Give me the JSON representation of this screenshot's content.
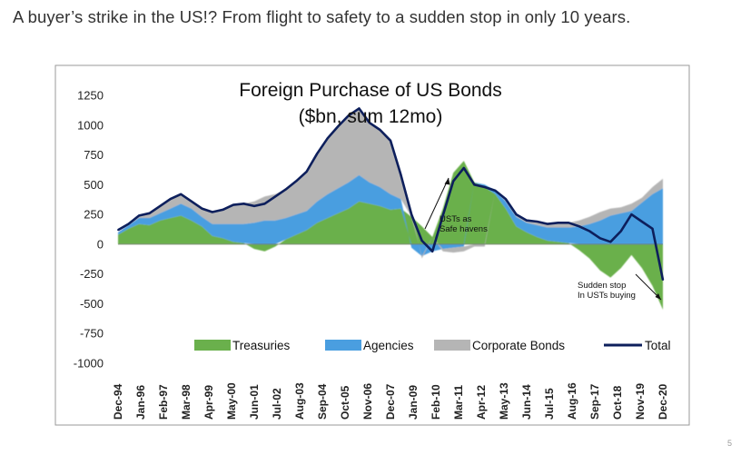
{
  "slide": {
    "title": "A buyer’s strike in the US!? From flight to safety to a sudden stop in only 10 years.",
    "page_number": "5"
  },
  "chart_data": {
    "type": "area",
    "title": "Foreign Purchase of US Bonds",
    "subtitle": "($bn, sum 12mo)",
    "xlabel": "",
    "ylabel": "",
    "ylim": [
      -1000,
      1250
    ],
    "y_ticks": [
      1250,
      1000,
      750,
      500,
      250,
      0,
      -250,
      -500,
      -750,
      -1000
    ],
    "x_tick_labels": [
      "Dec-94",
      "Jan-96",
      "Feb-97",
      "Mar-98",
      "Apr-99",
      "May-00",
      "Jun-01",
      "Jul-02",
      "Aug-03",
      "Sep-04",
      "Oct-05",
      "Nov-06",
      "Dec-07",
      "Jan-09",
      "Feb-10",
      "Mar-11",
      "Apr-12",
      "May-13",
      "Jun-14",
      "Jul-15",
      "Aug-16",
      "Sep-17",
      "Oct-18",
      "Nov-19",
      "Dec-20"
    ],
    "x": [
      "Dec-94",
      "Jun-95",
      "Dec-95",
      "Jun-96",
      "Dec-96",
      "Jun-97",
      "Dec-97",
      "Jun-98",
      "Dec-98",
      "Jun-99",
      "Dec-99",
      "Jun-00",
      "Dec-00",
      "Jun-01",
      "Dec-01",
      "Jun-02",
      "Dec-02",
      "Jun-03",
      "Dec-03",
      "Jun-04",
      "Dec-04",
      "Jun-05",
      "Dec-05",
      "Jun-06",
      "Dec-06",
      "Jun-07",
      "Dec-07",
      "Jun-08",
      "Dec-08",
      "Jun-09",
      "Dec-09",
      "Jun-10",
      "Dec-10",
      "Jun-11",
      "Dec-11",
      "Jun-12",
      "Dec-12",
      "Jun-13",
      "Dec-13",
      "Jun-14",
      "Dec-14",
      "Jun-15",
      "Dec-15",
      "Jun-16",
      "Dec-16",
      "Jun-17",
      "Dec-17",
      "Jun-18",
      "Dec-18",
      "Jun-19",
      "Dec-19",
      "Jun-20",
      "Dec-20"
    ],
    "series": [
      {
        "name": "Treasuries",
        "color": "#6ab04c",
        "values": [
          80,
          130,
          170,
          160,
          200,
          220,
          240,
          200,
          150,
          70,
          50,
          20,
          10,
          -40,
          -60,
          -20,
          40,
          80,
          120,
          180,
          220,
          260,
          300,
          360,
          340,
          320,
          290,
          300,
          230,
          150,
          60,
          300,
          600,
          700,
          520,
          480,
          420,
          300,
          150,
          100,
          60,
          30,
          20,
          10,
          -50,
          -120,
          -220,
          -280,
          -200,
          -90,
          -200,
          -350,
          -550
        ]
      },
      {
        "name": "Agencies",
        "color": "#4a9ee0",
        "values": [
          20,
          30,
          50,
          60,
          60,
          80,
          100,
          100,
          80,
          100,
          120,
          150,
          160,
          180,
          200,
          200,
          180,
          170,
          160,
          180,
          200,
          210,
          220,
          220,
          180,
          160,
          130,
          80,
          -30,
          -100,
          -60,
          -40,
          -30,
          -20,
          0,
          20,
          30,
          60,
          80,
          80,
          100,
          110,
          120,
          130,
          150,
          170,
          200,
          240,
          260,
          280,
          350,
          420,
          470
        ]
      },
      {
        "name": "Corporate Bonds",
        "color": "#b5b5b5",
        "values": [
          0,
          10,
          20,
          40,
          60,
          80,
          80,
          60,
          70,
          100,
          120,
          160,
          170,
          180,
          200,
          220,
          240,
          280,
          330,
          400,
          470,
          520,
          560,
          560,
          500,
          480,
          450,
          200,
          50,
          -20,
          0,
          -20,
          -40,
          -40,
          -20,
          -20,
          0,
          20,
          20,
          20,
          30,
          30,
          40,
          40,
          50,
          60,
          70,
          60,
          50,
          60,
          40,
          60,
          80
        ]
      },
      {
        "name": "Total",
        "color": "#0d1f5c",
        "values": [
          120,
          170,
          240,
          260,
          320,
          380,
          420,
          360,
          300,
          270,
          290,
          330,
          340,
          320,
          340,
          400,
          460,
          530,
          610,
          760,
          890,
          990,
          1080,
          1140,
          1020,
          960,
          870,
          580,
          250,
          30,
          -60,
          240,
          530,
          640,
          500,
          480,
          450,
          380,
          250,
          200,
          190,
          170,
          180,
          180,
          150,
          110,
          50,
          20,
          110,
          250,
          190,
          130,
          -300
        ]
      }
    ],
    "legend": {
      "placement": "bottom"
    },
    "annotations": [
      {
        "lines": [
          "USTs as",
          "Safe havens"
        ]
      },
      {
        "lines": [
          "Sudden stop",
          "In USTs buying"
        ]
      }
    ]
  }
}
